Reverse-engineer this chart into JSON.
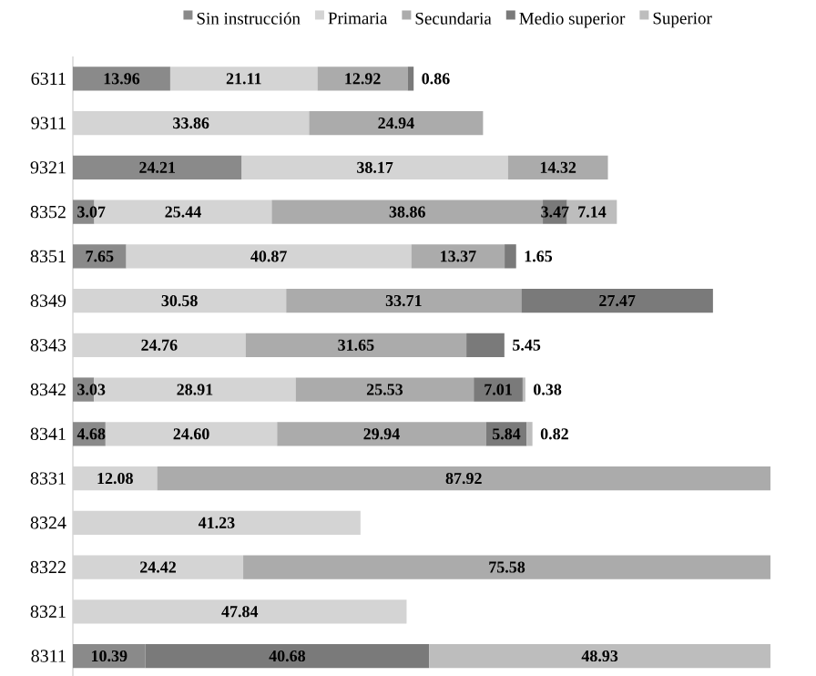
{
  "chart_data": {
    "type": "bar",
    "orientation": "horizontal",
    "stacked": true,
    "legend": "top",
    "tick_labels": "y",
    "xlim": [
      0,
      100
    ],
    "categories": [
      "6311",
      "9311",
      "9321",
      "8352",
      "8351",
      "8349",
      "8343",
      "8342",
      "8341",
      "8331",
      "8324",
      "8322",
      "8321",
      "8311"
    ],
    "series": [
      {
        "name": "Sin instrucción",
        "color": "#8a8a8a",
        "values": [
          13.96,
          null,
          24.21,
          3.07,
          7.65,
          null,
          null,
          3.03,
          4.68,
          null,
          null,
          null,
          null,
          10.39
        ],
        "value_labels": [
          "13.96",
          null,
          "24.21",
          "3.07",
          "7.65",
          null,
          null,
          "3.03",
          "4.68",
          null,
          null,
          null,
          null,
          "10.39"
        ]
      },
      {
        "name": "Primaria",
        "color": "#d4d4d4",
        "values": [
          21.11,
          33.86,
          38.17,
          25.44,
          40.87,
          30.58,
          24.76,
          28.91,
          24.6,
          12.08,
          41.23,
          24.42,
          47.84,
          null
        ],
        "value_labels": [
          "21.11",
          "33.86",
          "38.17",
          "25.44",
          "40.87",
          "30.58",
          "24.76",
          "28.91",
          "24.60",
          "12.08",
          "41.23",
          "24.42",
          "47.84",
          null
        ]
      },
      {
        "name": "Secundaria",
        "color": "#ababab",
        "values": [
          12.92,
          24.94,
          14.32,
          38.86,
          13.37,
          33.71,
          31.65,
          25.53,
          29.94,
          87.92,
          null,
          75.58,
          null,
          null
        ],
        "value_labels": [
          "12.92",
          "24.94",
          "14.32",
          "38.86",
          "13.37",
          "33.71",
          "31.65",
          "25.53",
          "29.94",
          "87.92",
          null,
          "75.58",
          null,
          null
        ]
      },
      {
        "name": "Medio superior",
        "color": "#7a7a7a",
        "values": [
          0.86,
          null,
          null,
          3.47,
          1.65,
          27.47,
          5.45,
          7.01,
          5.84,
          null,
          null,
          null,
          null,
          40.68
        ],
        "value_labels": [
          "0.86",
          null,
          null,
          "3.47",
          "1.65",
          "27.47",
          "5.45",
          "7.01",
          "5.84",
          null,
          null,
          null,
          null,
          "40.68"
        ]
      },
      {
        "name": "Superior",
        "color": "#bdbdbd",
        "values": [
          null,
          null,
          null,
          7.14,
          null,
          null,
          null,
          0.38,
          0.82,
          null,
          null,
          null,
          null,
          48.93
        ],
        "value_labels": [
          null,
          null,
          null,
          "7.14",
          null,
          null,
          null,
          "0.38",
          "0.82",
          null,
          null,
          null,
          null,
          "48.93"
        ]
      }
    ]
  }
}
